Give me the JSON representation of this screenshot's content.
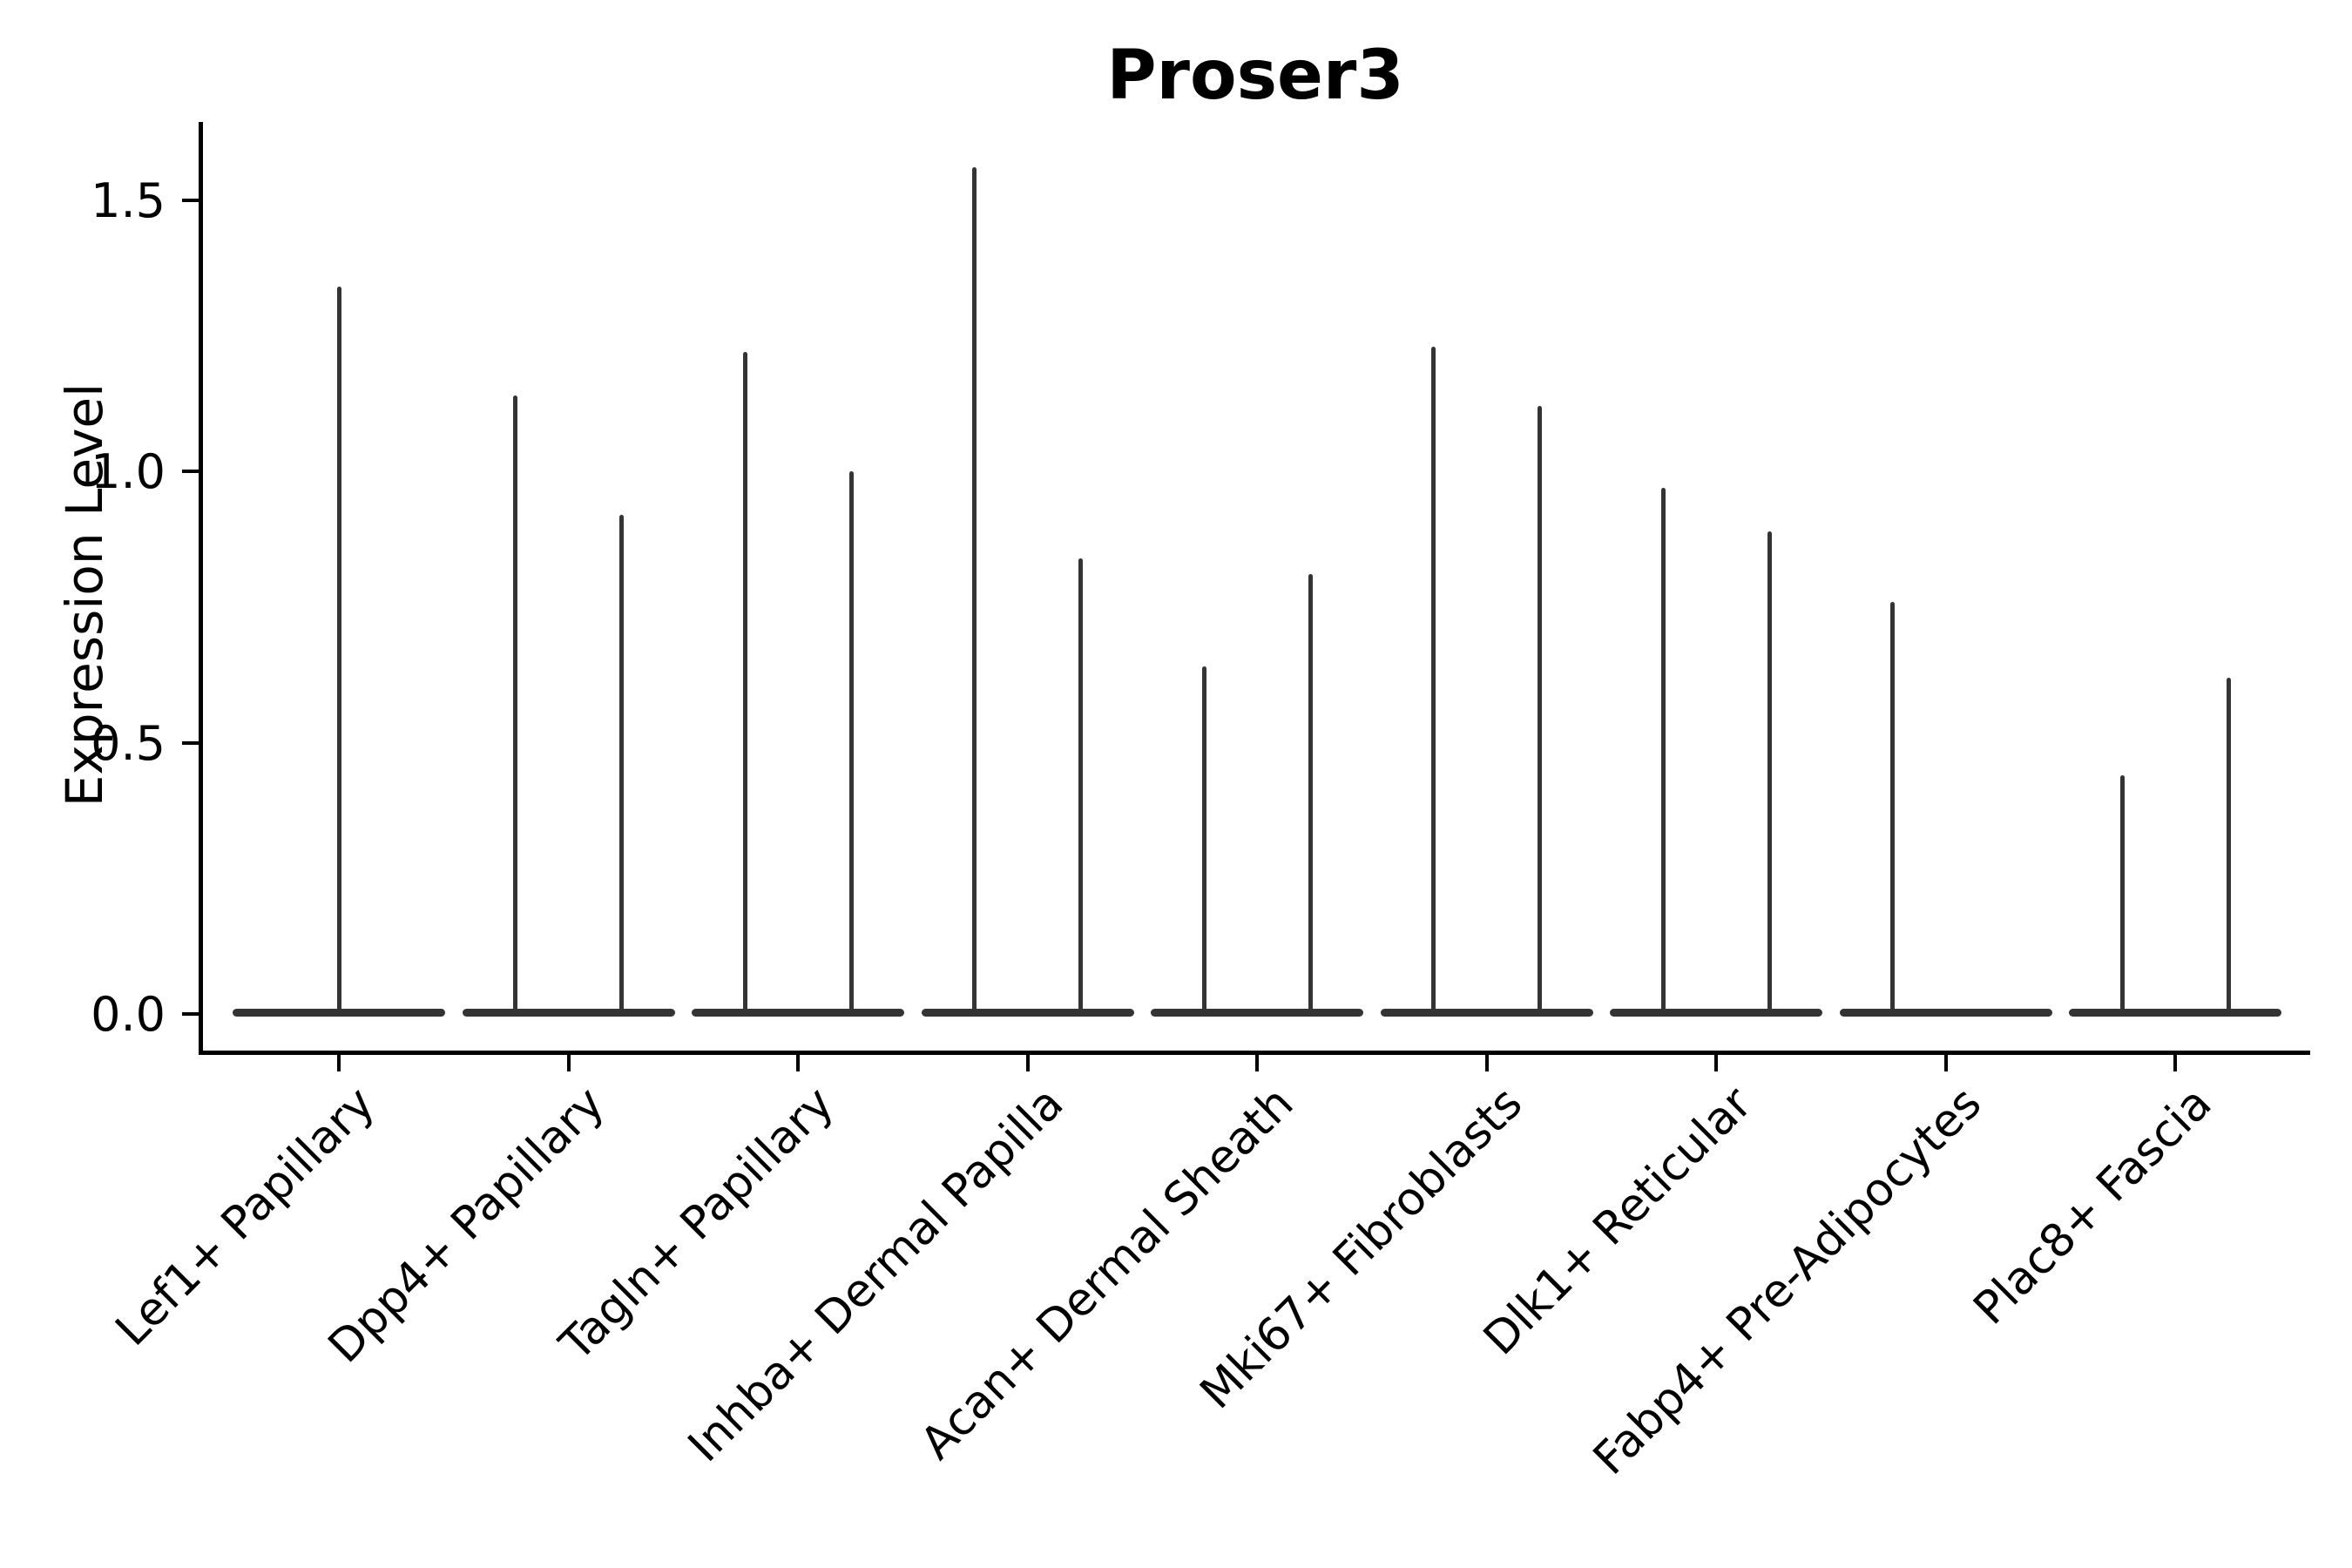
{
  "title": "Proser3",
  "y_axis": {
    "label": "Expression Level",
    "tick_labels": [
      "0.0",
      "0.5",
      "1.0",
      "1.5"
    ]
  },
  "colors": {
    "violin": "#343434",
    "axis": "#000000",
    "text": "#000000",
    "background": "#ffffff"
  },
  "chart_data": {
    "type": "violin",
    "title": "Proser3",
    "xlabel": "",
    "ylabel": "Expression Level",
    "ylim": [
      -0.07,
      1.64
    ],
    "yticks": [
      0.0,
      0.5,
      1.0,
      1.5
    ],
    "grid": false,
    "legend": null,
    "description": "Violin plot of Proser3 expression per fibroblast cluster; violins are needle-thin: a flat body at expression 0 with a narrow spike up to the max expression value. Most clusters show two side-by-side violins (split), Lef1+ Papillary shows a single centered violin and Fabp4+ Pre-Adipocytes only a left spike.",
    "categories": [
      "Lef1+ Papillary",
      "Dpp4+ Papillary",
      "Tagln+ Papillary",
      "Inhba+ Dermal Papilla",
      "Acan+ Dermal Sheath",
      "Mki67+ Fibroblasts",
      "Dlk1+ Reticular",
      "Fabp4+ Pre-Adipocytes",
      "Plac8+ Fascia"
    ],
    "baseline_value": 0.0,
    "groups": [
      {
        "category": "Lef1+ Papillary",
        "violins": [
          {
            "position": "center",
            "max_expression": 1.34
          }
        ]
      },
      {
        "category": "Dpp4+ Papillary",
        "violins": [
          {
            "position": "left",
            "max_expression": 1.14
          },
          {
            "position": "right",
            "max_expression": 0.92
          }
        ]
      },
      {
        "category": "Tagln+ Papillary",
        "violins": [
          {
            "position": "left",
            "max_expression": 1.22
          },
          {
            "position": "right",
            "max_expression": 1.0
          }
        ]
      },
      {
        "category": "Inhba+ Dermal Papilla",
        "violins": [
          {
            "position": "left",
            "max_expression": 1.56
          },
          {
            "position": "right",
            "max_expression": 0.84
          }
        ]
      },
      {
        "category": "Acan+ Dermal Sheath",
        "violins": [
          {
            "position": "left",
            "max_expression": 0.64
          },
          {
            "position": "right",
            "max_expression": 0.81
          }
        ]
      },
      {
        "category": "Mki67+ Fibroblasts",
        "violins": [
          {
            "position": "left",
            "max_expression": 1.23
          },
          {
            "position": "right",
            "max_expression": 1.12
          }
        ]
      },
      {
        "category": "Dlk1+ Reticular",
        "violins": [
          {
            "position": "left",
            "max_expression": 0.97
          },
          {
            "position": "right",
            "max_expression": 0.89
          }
        ]
      },
      {
        "category": "Fabp4+ Pre-Adipocytes",
        "violins": [
          {
            "position": "left",
            "max_expression": 0.76
          }
        ]
      },
      {
        "category": "Plac8+ Fascia",
        "violins": [
          {
            "position": "left",
            "max_expression": 0.44
          },
          {
            "position": "right",
            "max_expression": 0.62
          }
        ]
      }
    ]
  }
}
